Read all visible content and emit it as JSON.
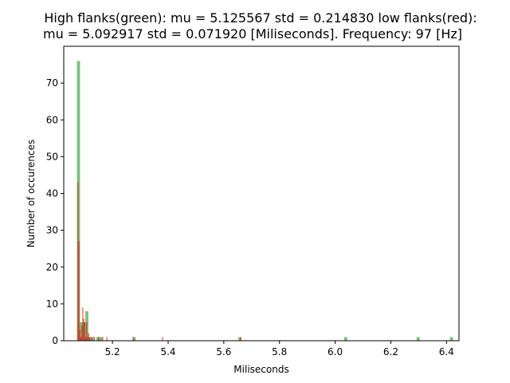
{
  "chart_data": {
    "type": "bar",
    "title_line1": "High flanks(green): mu = 5.125567  std = 0.214830  low flanks(red):",
    "title_line2": "mu = 5.092917  std = 0.071920  [Miliseconds]. Frequency: 97 [Hz]",
    "xlabel": "Miliseconds",
    "ylabel": "Number of occurences",
    "xlim": [
      5.025,
      6.445
    ],
    "ylim": [
      0,
      80
    ],
    "x_ticks": [
      5.2,
      5.4,
      5.6,
      5.8,
      6.0,
      6.2,
      6.4
    ],
    "x_tick_labels": [
      "5.2",
      "5.4",
      "5.6",
      "5.8",
      "6.0",
      "6.2",
      "6.4"
    ],
    "y_ticks": [
      0,
      10,
      20,
      30,
      40,
      50,
      60,
      70
    ],
    "y_tick_labels": [
      "0",
      "10",
      "20",
      "30",
      "40",
      "50",
      "60",
      "70"
    ],
    "grid": false,
    "series": [
      {
        "name": "High flanks",
        "color": "#4daf4a",
        "bin_width": 0.011,
        "x": [
          5.078,
          5.088,
          5.098,
          5.108,
          5.118,
          5.128,
          5.148,
          5.158,
          5.278,
          5.658,
          6.038,
          6.298,
          6.418
        ],
        "values": [
          76,
          5,
          5,
          8,
          1,
          1,
          1,
          1,
          1,
          1,
          1,
          1,
          1
        ]
      },
      {
        "name": "Low flanks",
        "color": "#e41a1c",
        "bin_width": 0.0035,
        "x": [
          5.076,
          5.0795,
          5.083,
          5.0865,
          5.09,
          5.0935,
          5.097,
          5.1005,
          5.104,
          5.1075,
          5.111,
          5.1145,
          5.118,
          5.125,
          5.135,
          5.15,
          5.165,
          5.18,
          5.275,
          5.38,
          5.66
        ],
        "values": [
          43,
          27,
          3,
          1,
          4,
          9,
          6,
          5,
          1,
          5,
          1,
          2,
          1,
          1,
          1,
          1,
          1,
          1,
          1,
          1,
          1
        ]
      }
    ]
  }
}
